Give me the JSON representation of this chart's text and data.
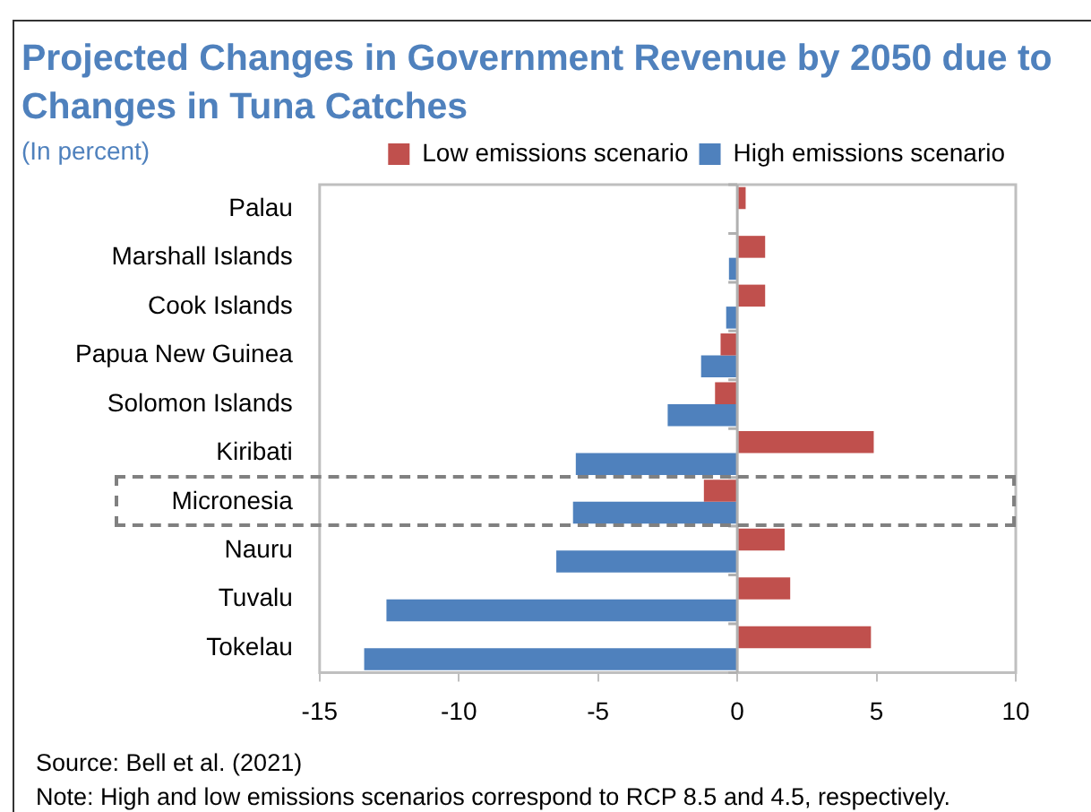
{
  "chart_data": {
    "type": "bar",
    "orientation": "horizontal",
    "title": "Projected Changes in Government Revenue by 2050 due to Changes in Tuna Catches",
    "subtitle": "(In percent)",
    "categories": [
      "Palau",
      "Marshall Islands",
      "Cook Islands",
      "Papua New Guinea",
      "Solomon Islands",
      "Kiribati",
      "Micronesia",
      "Nauru",
      "Tuvalu",
      "Tokelau"
    ],
    "series": [
      {
        "name": "Low emissions scenario",
        "color": "#c0504d",
        "values": [
          0.3,
          1.0,
          1.0,
          -0.6,
          -0.8,
          4.9,
          -1.2,
          1.7,
          1.9,
          4.8
        ]
      },
      {
        "name": "High emissions scenario",
        "color": "#4f81bd",
        "values": [
          0,
          -0.3,
          -0.4,
          -1.3,
          -2.5,
          -5.8,
          -5.9,
          -6.5,
          -12.6,
          -13.4
        ]
      }
    ],
    "xlim": [
      -15,
      10
    ],
    "xticks": [
      -15,
      -10,
      -5,
      0,
      5,
      10
    ],
    "legend": "top",
    "annotations": [
      "Source: Bell et al. (2021)",
      "Note: High and low emissions scenarios correspond to RCP 8.5 and 4.5, respectively."
    ]
  }
}
